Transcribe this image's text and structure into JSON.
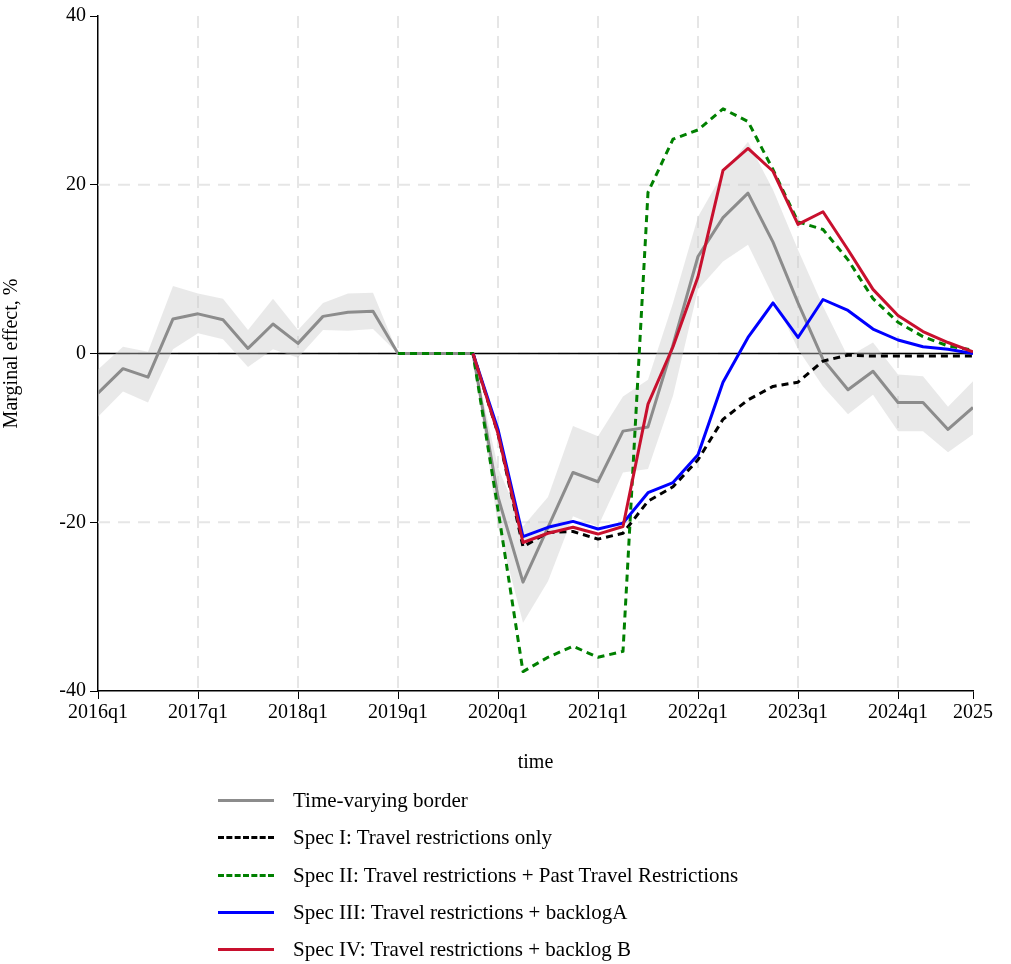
{
  "chart_data": {
    "type": "line",
    "xlabel": "time",
    "ylabel": "Marginal effect, %",
    "categories": [
      "2016q1",
      null,
      null,
      null,
      "2017q1",
      null,
      null,
      null,
      "2018q1",
      null,
      null,
      null,
      "2019q1",
      null,
      null,
      null,
      "2020q1",
      null,
      null,
      null,
      "2021q1",
      null,
      null,
      null,
      "2022q1",
      null,
      null,
      null,
      "2023q1",
      null,
      null,
      null,
      "2024q1",
      null,
      null,
      "2025"
    ],
    "ylim": [
      -40,
      40
    ],
    "yticks": [
      -40,
      -20,
      0,
      20,
      40
    ],
    "grid": true,
    "legend": "bottom",
    "marker": "none",
    "ref_lines": [
      {
        "axis": "y",
        "value": 0,
        "color": "#000000",
        "line_style": "solid"
      }
    ],
    "series": [
      {
        "name": "Time-varying border",
        "color": "#8c8c8c",
        "line_style": "solid",
        "values": [
          -4.7,
          -1.8,
          -2.8,
          4.1,
          4.7,
          4.0,
          0.6,
          3.5,
          1.2,
          4.4,
          4.9,
          5.0,
          0,
          0,
          0,
          0,
          -17,
          -27.1,
          -20.6,
          -14.1,
          -15.2,
          -9.2,
          -8.7,
          1,
          11.5,
          16.1,
          19.0,
          13.2,
          6.0,
          -0.7,
          -4.3,
          -2.1,
          -5.8,
          -5.8,
          -9.0,
          -6.4
        ],
        "lower": [
          -7.5,
          -4.5,
          -5.8,
          0.5,
          2.4,
          1.7,
          -1.6,
          0.5,
          -0.5,
          2.8,
          2.7,
          2.9,
          0,
          0,
          0,
          0,
          -20.5,
          -31.9,
          -27,
          -19.3,
          -20.5,
          -14.1,
          -13.7,
          -5,
          7.6,
          10.9,
          12.9,
          6.8,
          0.5,
          -3.9,
          -7.2,
          -4.9,
          -9.2,
          -9.2,
          -11.7,
          -9.6
        ],
        "upper": [
          -1.9,
          0.8,
          0.2,
          8.0,
          7.1,
          6.5,
          2.8,
          6.5,
          2.8,
          6.0,
          7.1,
          7.2,
          0,
          0,
          0,
          0,
          -13.5,
          -20.5,
          -17,
          -8.6,
          -9.8,
          -5.1,
          -3.1,
          6,
          16.2,
          21.4,
          25.1,
          19.4,
          12.3,
          5.6,
          -0.4,
          1.3,
          -2.5,
          -2.7,
          -6.3,
          -3.3
        ]
      },
      {
        "name": "Spec I: Travel restrictions only",
        "color": "#000000",
        "line_style": "dashed",
        "values": [
          null,
          null,
          null,
          null,
          null,
          null,
          null,
          null,
          null,
          null,
          null,
          null,
          null,
          null,
          null,
          0,
          -9.5,
          -22.9,
          -21.2,
          -21.1,
          -22.0,
          -21.3,
          -17.5,
          -15.8,
          -12.6,
          -7.8,
          -5.5,
          -3.9,
          -3.4,
          -0.9,
          -0.2,
          -0.3,
          -0.3,
          -0.3,
          -0.3,
          -0.3
        ]
      },
      {
        "name": "Spec II: Travel restrictions + Past Travel Restrictions",
        "color": "#008000",
        "line_style": "dashed",
        "values": [
          null,
          null,
          null,
          null,
          null,
          null,
          null,
          null,
          null,
          null,
          null,
          null,
          0,
          0,
          0,
          0,
          -18.5,
          -37.7,
          -36.0,
          -34.7,
          -36.0,
          -35.3,
          19.1,
          25.4,
          26.5,
          29.0,
          27.5,
          21.8,
          15.6,
          14.7,
          11.1,
          6.5,
          3.7,
          2.0,
          0.9,
          0.4
        ]
      },
      {
        "name": "Spec III: Travel restrictions + backlogA",
        "color": "#0000ff",
        "line_style": "solid",
        "values": [
          null,
          null,
          null,
          null,
          null,
          null,
          null,
          null,
          null,
          null,
          null,
          null,
          null,
          null,
          null,
          0,
          -9.0,
          -21.7,
          -20.6,
          -19.9,
          -20.8,
          -20.1,
          -16.5,
          -15.3,
          -12.0,
          -3.4,
          1.9,
          6.0,
          1.9,
          6.4,
          5.1,
          2.9,
          1.6,
          0.8,
          0.5,
          0
        ]
      },
      {
        "name": "Spec IV: Travel restrictions + backlog B",
        "color": "#c8102e",
        "line_style": "solid",
        "values": [
          null,
          null,
          null,
          null,
          null,
          null,
          null,
          null,
          null,
          null,
          null,
          null,
          null,
          null,
          null,
          0,
          -9.5,
          -22.4,
          -21.3,
          -20.6,
          -21.4,
          -20.5,
          -6.0,
          0.8,
          9.1,
          21.7,
          24.3,
          21.6,
          15.3,
          16.8,
          12.3,
          7.6,
          4.5,
          2.6,
          1.3,
          0.2
        ]
      }
    ]
  }
}
